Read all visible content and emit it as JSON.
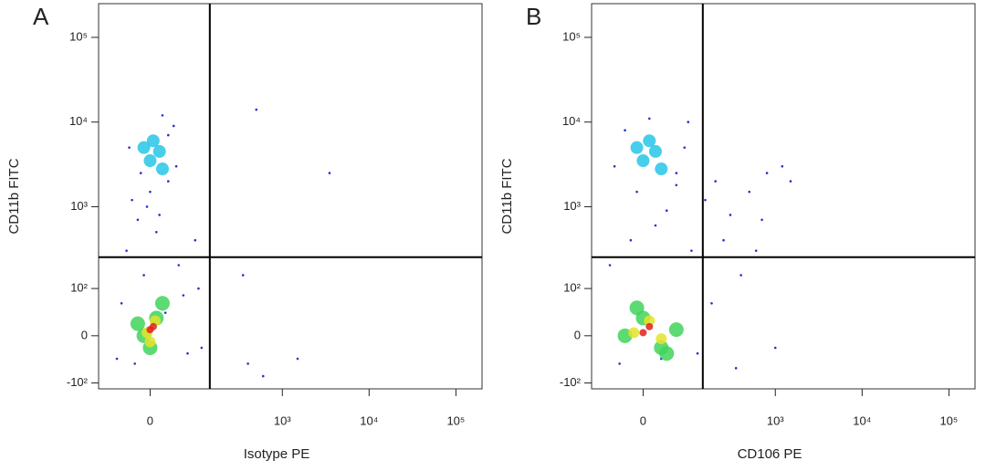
{
  "chart_data": [
    {
      "type": "scatter",
      "title": "A",
      "xlabel": "Isotype PE",
      "ylabel": "CD11b FITC",
      "xscale": "biexponential",
      "yscale": "biexponential",
      "xlim": [
        -110,
        200000
      ],
      "ylim": [
        -120,
        250000
      ],
      "xticks": [
        0,
        {
          "value": 1000,
          "label": "10³"
        },
        {
          "value": 10000,
          "label": "10⁴"
        },
        {
          "value": 100000,
          "label": "10⁵"
        }
      ],
      "yticks": [
        {
          "value": -100,
          "label": "-10²"
        },
        0,
        {
          "value": 100,
          "label": "10²"
        },
        {
          "value": 1000,
          "label": "10³"
        },
        {
          "value": 10000,
          "label": "10⁴"
        },
        {
          "value": 100000,
          "label": "10⁵"
        }
      ],
      "gates": {
        "x": 140,
        "y": 250
      },
      "series": [
        {
          "color": "#2233cc",
          "x": [
            -60,
            -40,
            -30,
            -20,
            -10,
            10,
            30,
            50,
            70,
            100,
            -50,
            40,
            -35,
            20,
            60,
            90,
            -15,
            0,
            15,
            -25,
            45,
            110,
            30,
            -5,
            25,
            500,
            3500,
            400,
            600,
            1500,
            350
          ],
          "y": [
            -40,
            300,
            1200,
            700,
            150,
            500,
            2000,
            200,
            -30,
            100,
            60,
            9000,
            5000,
            12000,
            80,
            400,
            2500,
            1500,
            800,
            -50,
            3000,
            -20,
            7000,
            1000,
            40,
            14000,
            2500,
            -50,
            -80,
            -40,
            150
          ]
        },
        {
          "color": "#26c6e8",
          "x": [
            0,
            15,
            -10,
            20,
            5
          ],
          "y": [
            3500,
            4500,
            5000,
            2800,
            6000
          ]
        },
        {
          "color": "#3fd45a",
          "x": [
            -10,
            10,
            0,
            20,
            -20
          ],
          "y": [
            0,
            30,
            -20,
            60,
            20
          ]
        },
        {
          "color": "#e3e32a",
          "x": [
            -5,
            8,
            0
          ],
          "y": [
            5,
            25,
            -10
          ]
        },
        {
          "color": "#e0201c",
          "x": [
            0,
            5
          ],
          "y": [
            10,
            15
          ]
        }
      ]
    },
    {
      "type": "scatter",
      "title": "B",
      "xlabel": "CD106 PE",
      "ylabel": "CD11b FITC",
      "xscale": "biexponential",
      "yscale": "biexponential",
      "xlim": [
        -110,
        200000
      ],
      "ylim": [
        -120,
        250000
      ],
      "xticks": [
        0,
        {
          "value": 1000,
          "label": "10³"
        },
        {
          "value": 10000,
          "label": "10⁴"
        },
        {
          "value": 100000,
          "label": "10⁵"
        }
      ],
      "yticks": [
        {
          "value": -100,
          "label": "-10²"
        },
        0,
        {
          "value": 100,
          "label": "10²"
        },
        {
          "value": 1000,
          "label": "10³"
        },
        {
          "value": 10000,
          "label": "10⁴"
        },
        {
          "value": 100000,
          "label": "10⁵"
        }
      ],
      "gates": {
        "x": 140,
        "y": 250
      },
      "series": [
        {
          "color": "#2233cc",
          "x": [
            -50,
            -30,
            -10,
            20,
            60,
            100,
            150,
            200,
            300,
            500,
            800,
            1200,
            1500,
            250,
            400,
            120,
            80,
            -40,
            10,
            40,
            -20,
            180,
            700,
            350,
            90,
            30,
            -60,
            60,
            1000,
            600
          ],
          "y": [
            3000,
            8000,
            1500,
            600,
            2500,
            300,
            1200,
            2000,
            800,
            1500,
            2500,
            3000,
            2000,
            400,
            150,
            -30,
            5000,
            -50,
            11000,
            900,
            400,
            60,
            700,
            -60,
            10000,
            -40,
            200,
            1800,
            -20,
            300
          ]
        },
        {
          "color": "#26c6e8",
          "x": [
            0,
            20,
            -10,
            30,
            10
          ],
          "y": [
            3500,
            4500,
            5000,
            2800,
            6000
          ]
        },
        {
          "color": "#3fd45a",
          "x": [
            -30,
            0,
            30,
            60,
            -10,
            40
          ],
          "y": [
            0,
            30,
            -20,
            10,
            50,
            -30
          ]
        },
        {
          "color": "#e3e32a",
          "x": [
            -15,
            10,
            30
          ],
          "y": [
            5,
            25,
            -5
          ]
        },
        {
          "color": "#e0201c",
          "x": [
            0,
            10
          ],
          "y": [
            5,
            15
          ]
        }
      ]
    }
  ]
}
